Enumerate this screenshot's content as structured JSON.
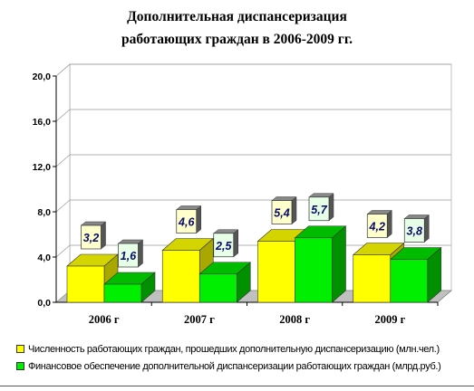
{
  "chart_data": {
    "type": "bar",
    "title": [
      "Дополнительная диспансеризация",
      "работающих граждан в 2006-2009 гг."
    ],
    "categories": [
      "2006 г",
      "2007 г",
      "2008 г",
      "2009 г"
    ],
    "series": [
      {
        "name": "Численность работающих граждан, прошедших дополнительную диспансеризацию (млн.чел.)",
        "values": [
          3.2,
          4.6,
          5.4,
          4.2
        ],
        "labels": [
          "3,2",
          "4,6",
          "5,4",
          "4,2"
        ],
        "color": "#ffff00",
        "side_color": "#a8a800",
        "top_color": "#d4d400",
        "label_bg": "#ffffcc"
      },
      {
        "name": "Финансовое обеспечение дополнительной диспансеризации работающих граждан (млрд.руб.)",
        "values": [
          1.6,
          2.5,
          5.7,
          3.8
        ],
        "labels": [
          "1,6",
          "2,5",
          "5,7",
          "3,8"
        ],
        "color": "#00ee00",
        "side_color": "#009000",
        "top_color": "#00bb00",
        "label_bg": "#e6ffe6"
      }
    ],
    "ylim": [
      0,
      20
    ],
    "yticks": [
      0,
      4,
      8,
      12,
      16,
      20
    ],
    "ytick_labels": [
      "0,0",
      "4,0",
      "8,0",
      "12,0",
      "16,0",
      "20,0"
    ],
    "grid": true,
    "legend_position": "bottom",
    "three_d": true
  }
}
